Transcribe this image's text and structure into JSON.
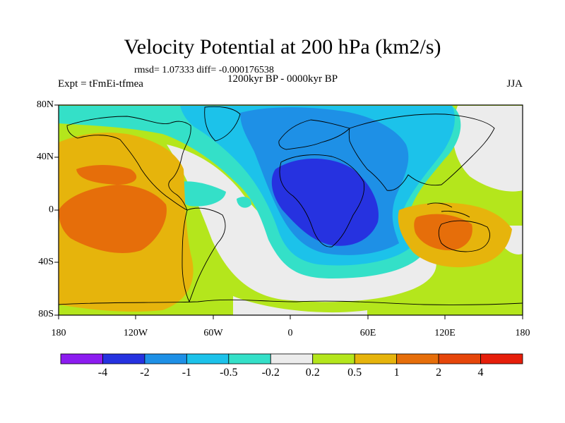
{
  "title": "Velocity Potential at 200 hPa (km2/s)",
  "stats": "rmsd= 1.07333 diff= -0.000176538",
  "experiment": "Expt = tFmEi-tfmea",
  "period": "1200kyr BP - 0000kyr BP",
  "season": "JJA",
  "lat_labels": [
    "80N",
    "40N",
    "0",
    "40S",
    "80S"
  ],
  "lon_labels": [
    "180",
    "120W",
    "60W",
    "0",
    "60E",
    "120E",
    "180"
  ],
  "colorbar": {
    "colors": [
      "#8c1cf0",
      "#2632e0",
      "#1e90e6",
      "#1cc2ea",
      "#34e0c8",
      "#ececec",
      "#b4e61c",
      "#e6b40c",
      "#e66e0a",
      "#e6460a",
      "#e61e0a"
    ],
    "labels": [
      "-4",
      "-2",
      "-1",
      "-0.5",
      "-0.2",
      "0.2",
      "0.5",
      "1",
      "2",
      "4"
    ]
  },
  "map_colors": {
    "ocean_base": "#b4e61c",
    "neg_weak": "#34e0c8",
    "neg_med": "#1cc2ea",
    "neg_strong": "#1e90e6",
    "neg_max": "#2632e0",
    "neutral": "#ececec",
    "pos_weak": "#e6b40c",
    "pos_med": "#e66e0a"
  }
}
